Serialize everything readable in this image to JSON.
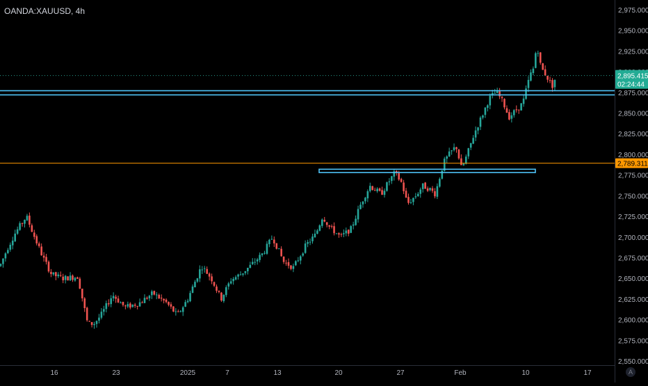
{
  "header": {
    "symbol_title": "OANDA:XAUUSD, 4h"
  },
  "auto_scale_label": "A",
  "colors": {
    "background": "#000000",
    "bull": "#26a69a",
    "bear": "#ef5350",
    "support_line": "#4fc3f7",
    "level_line": "#ff9800",
    "last_price_dots": "#2a9d8f"
  },
  "chart_data": {
    "type": "candlestick",
    "title": "OANDA:XAUUSD, 4h",
    "xlabel": "",
    "ylabel": "",
    "ylim": [
      2545,
      2985
    ],
    "grid": false,
    "y_ticks": [
      "2,975.000",
      "2,950.000",
      "2,925.000",
      "2,900.000",
      "2,875.000",
      "2,850.000",
      "2,825.000",
      "2,800.000",
      "2,775.000",
      "2,750.000",
      "2,725.000",
      "2,700.000",
      "2,675.000",
      "2,650.000",
      "2,625.000",
      "2,600.000",
      "2,575.000",
      "2,550.000"
    ],
    "x_ticks": [
      "16",
      "23",
      "2025",
      "7",
      "13",
      "20",
      "27",
      "Feb",
      "10",
      "17"
    ],
    "last_price": {
      "label": "2,895.415",
      "countdown": "02:24:44",
      "value": 2895.4
    },
    "orange_level": {
      "label": "2,789.311",
      "value": 2789.3
    },
    "support_lines_y": [
      2877,
      2872
    ],
    "support_box": {
      "from": "Jan 23",
      "to": "Feb 11",
      "low": 2778,
      "high": 2782
    },
    "path_anchors": [
      [
        0,
        2665
      ],
      [
        10,
        2685
      ],
      [
        22,
        2705
      ],
      [
        38,
        2725
      ],
      [
        52,
        2695
      ],
      [
        62,
        2675
      ],
      [
        74,
        2655
      ],
      [
        90,
        2650
      ],
      [
        112,
        2652
      ],
      [
        126,
        2595
      ],
      [
        135,
        2595
      ],
      [
        145,
        2605
      ],
      [
        162,
        2630
      ],
      [
        180,
        2615
      ],
      [
        200,
        2620
      ],
      [
        220,
        2632
      ],
      [
        240,
        2620
      ],
      [
        255,
        2605
      ],
      [
        270,
        2625
      ],
      [
        290,
        2665
      ],
      [
        304,
        2650
      ],
      [
        318,
        2625
      ],
      [
        332,
        2648
      ],
      [
        346,
        2655
      ],
      [
        360,
        2665
      ],
      [
        378,
        2680
      ],
      [
        392,
        2700
      ],
      [
        408,
        2670
      ],
      [
        422,
        2663
      ],
      [
        440,
        2690
      ],
      [
        454,
        2703
      ],
      [
        464,
        2725
      ],
      [
        474,
        2712
      ],
      [
        490,
        2700
      ],
      [
        505,
        2710
      ],
      [
        520,
        2742
      ],
      [
        532,
        2762
      ],
      [
        548,
        2752
      ],
      [
        560,
        2768
      ],
      [
        568,
        2778
      ],
      [
        578,
        2765
      ],
      [
        586,
        2740
      ],
      [
        598,
        2750
      ],
      [
        608,
        2762
      ],
      [
        618,
        2758
      ],
      [
        626,
        2752
      ],
      [
        638,
        2790
      ],
      [
        646,
        2800
      ],
      [
        656,
        2810
      ],
      [
        664,
        2782
      ],
      [
        672,
        2800
      ],
      [
        682,
        2825
      ],
      [
        694,
        2848
      ],
      [
        704,
        2868
      ],
      [
        714,
        2876
      ],
      [
        724,
        2862
      ],
      [
        732,
        2845
      ],
      [
        744,
        2855
      ],
      [
        752,
        2862
      ],
      [
        762,
        2895
      ],
      [
        768,
        2905
      ],
      [
        772,
        2935
      ],
      [
        778,
        2905
      ],
      [
        786,
        2895
      ],
      [
        794,
        2882
      ],
      [
        800,
        2895
      ]
    ]
  }
}
